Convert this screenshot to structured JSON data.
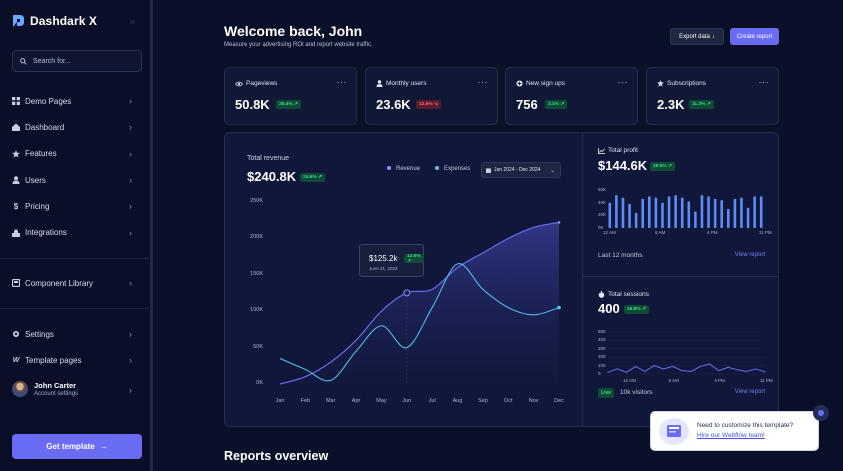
{
  "brand": {
    "name": "Dashdark X"
  },
  "sidebar": {
    "search_placeholder": "Search for...",
    "items": [
      {
        "label": "Demo Pages",
        "icon": "grid-icon"
      },
      {
        "label": "Dashboard",
        "icon": "home-icon"
      },
      {
        "label": "Features",
        "icon": "star-icon"
      },
      {
        "label": "Users",
        "icon": "user-icon"
      },
      {
        "label": "Pricing",
        "icon": "dollar-icon"
      },
      {
        "label": "Integrations",
        "icon": "integrations-icon"
      }
    ],
    "component_library": "Component Library",
    "settings": "Settings",
    "template_pages": "Template pages",
    "user": {
      "name": "John Carter",
      "sub": "Account settings"
    },
    "cta": "Get template",
    "cta_arrow": "→",
    "chevron": "›"
  },
  "header": {
    "title": "Welcome back, John",
    "subtitle": "Measure your advertising ROI and report website traffic.",
    "export_label": "Export data",
    "export_arrow": "↓",
    "create_label": "Create report"
  },
  "stats": [
    {
      "label": "Pageviews",
      "value": "50.8K",
      "change": "28.4% ↗",
      "trend": "up",
      "icon": "eye-icon"
    },
    {
      "label": "Monthly users",
      "value": "23.6K",
      "change": "12.6% ↘",
      "trend": "down",
      "icon": "user-icon"
    },
    {
      "label": "New sign ups",
      "value": "756",
      "change": "3.1% ↗",
      "trend": "up",
      "icon": "plus-circle-icon"
    },
    {
      "label": "Subscriptions",
      "value": "2.3K",
      "change": "11.3% ↗",
      "trend": "up",
      "icon": "star-icon"
    }
  ],
  "stat_menu": "···",
  "revenue": {
    "title": "Total revenue",
    "value": "$240.8K",
    "change": "24.6% ↗",
    "legend": [
      "Revenue",
      "Expenses"
    ],
    "date_range": "Jan 2024 - Dec 2024",
    "tooltip": {
      "value": "$125.2k",
      "change": "12.5% ↗",
      "date": "June 21, 2023"
    }
  },
  "profit": {
    "title": "Total profit",
    "value": "$144.6K",
    "change": "28.5% ↗",
    "footer_left": "Last 12 months",
    "footer_right": "View report"
  },
  "sessions": {
    "title": "Total sessions",
    "value": "400",
    "change": "16.8% ↗",
    "live_label": "Live",
    "visitors": "10k visitors",
    "footer_right": "View report"
  },
  "reports_title": "Reports overview",
  "toast": {
    "line1": "Need to customize this template?",
    "line2": "Hire our Webflow team!"
  },
  "colors": {
    "accent": "#6b6cf6",
    "revenue": "#6a6cf0",
    "expenses": "#55c8f0",
    "bar": "#5d8cf5"
  },
  "chart_data": [
    {
      "type": "area",
      "title": "Total revenue",
      "categories": [
        "Jan",
        "Feb",
        "Mar",
        "Apr",
        "May",
        "Jun",
        "Jul",
        "Aug",
        "Sep",
        "Oct",
        "Nov",
        "Dec"
      ],
      "yticks": [
        "250K",
        "200K",
        "150K",
        "100K",
        "50K",
        "0K"
      ],
      "ylim": [
        0,
        250000
      ],
      "series": [
        {
          "name": "Revenue",
          "values": [
            0,
            10000,
            30000,
            60000,
            100000,
            125200,
            130000,
            160000,
            180000,
            200000,
            215000,
            222000
          ]
        },
        {
          "name": "Expenses",
          "values": [
            35000,
            20000,
            5000,
            45000,
            80000,
            50000,
            105000,
            165000,
            130000,
            105000,
            95000,
            105000
          ]
        }
      ]
    },
    {
      "type": "bar",
      "title": "Total profit",
      "xticks": [
        "12 AM",
        "8 AM",
        "4 PM",
        "11 PM"
      ],
      "yticks": [
        "60K",
        "40K",
        "20K",
        "0K"
      ],
      "ylim": [
        0,
        60000
      ],
      "values": [
        40000,
        52000,
        48000,
        38000,
        24000,
        46000,
        50000,
        48000,
        40000,
        50000,
        52000,
        48000,
        42000,
        26000,
        52000,
        50000,
        46000,
        44000,
        30000,
        46000,
        48000,
        32000,
        50000,
        50000
      ]
    },
    {
      "type": "line",
      "title": "Total sessions",
      "xticks": [
        "12 AM",
        "8 AM",
        "4 PM",
        "11 PM"
      ],
      "yticks": [
        "500",
        "400",
        "300",
        "200",
        "100",
        "0"
      ],
      "ylim": [
        0,
        500
      ],
      "values": [
        20,
        60,
        20,
        90,
        30,
        100,
        60,
        90,
        40,
        30,
        90,
        120,
        40,
        80,
        50,
        30,
        60,
        25
      ]
    }
  ]
}
